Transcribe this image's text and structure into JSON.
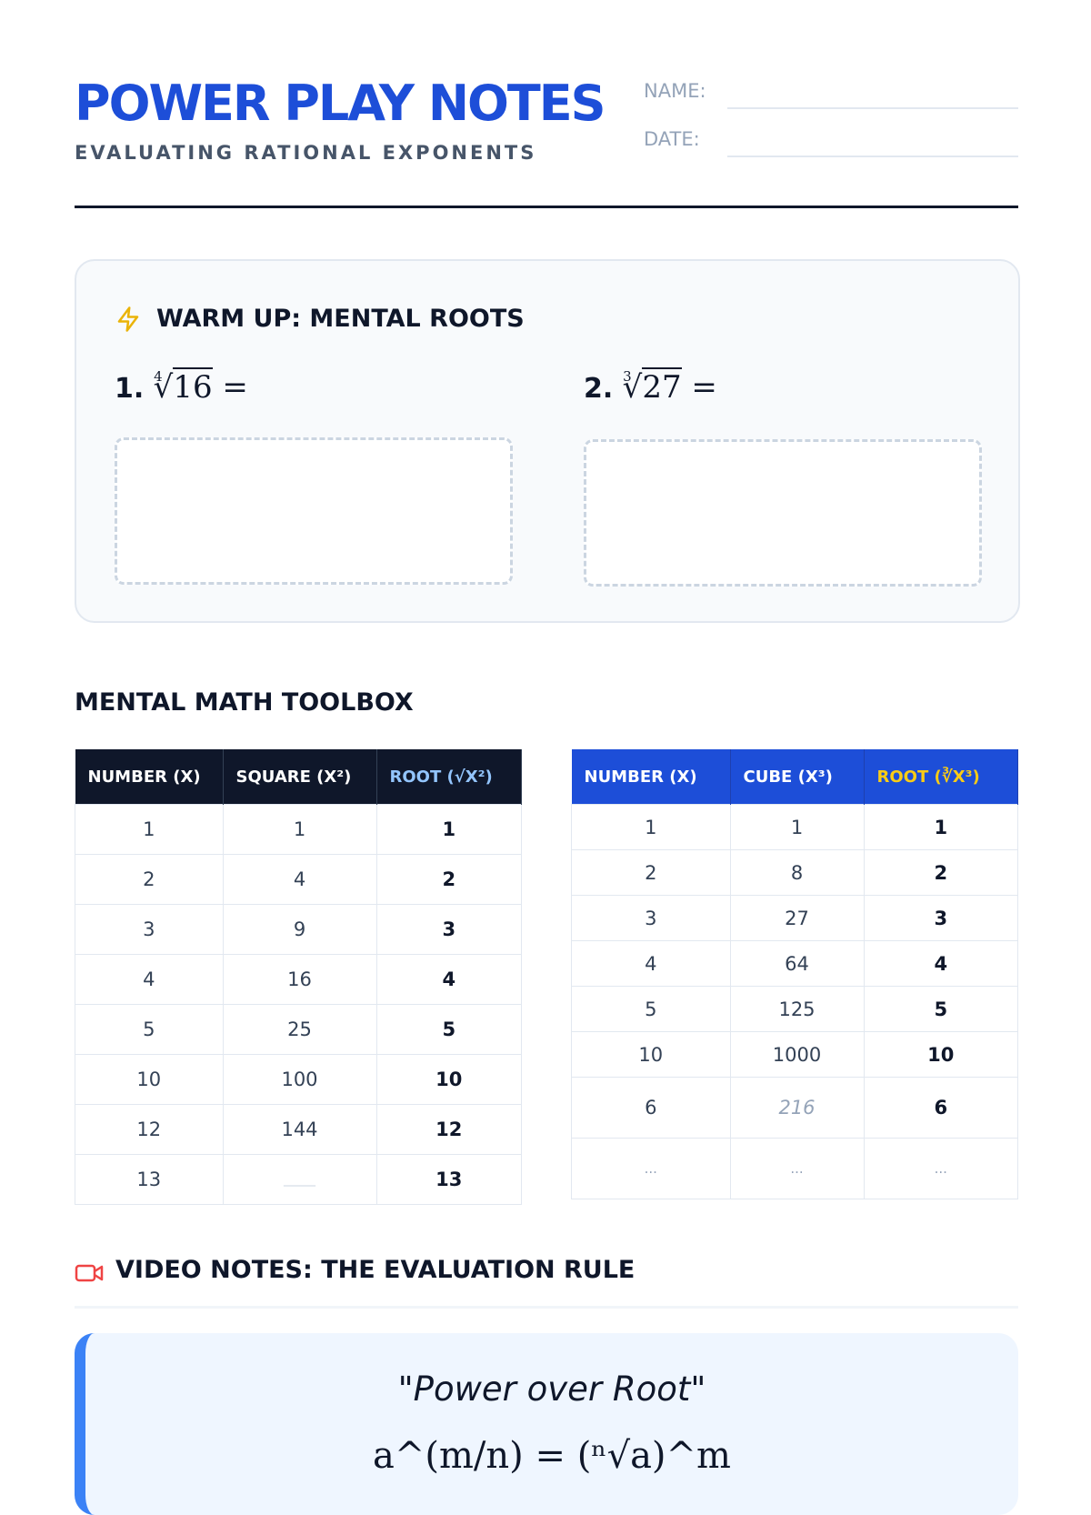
{
  "header": {
    "title": "POWER PLAY NOTES",
    "subtitle": "EVALUATING RATIONAL EXPONENTS",
    "name_label": "NAME:",
    "date_label": "DATE:"
  },
  "warmup": {
    "title": "WARM UP: MENTAL ROOTS",
    "icon": "lightning-bolt-icon",
    "accent": "#eab308",
    "problems": [
      {
        "num": "1.",
        "index": "4",
        "radicand": "16",
        "eq": "="
      },
      {
        "num": "2.",
        "index": "3",
        "radicand": "27",
        "eq": "="
      }
    ]
  },
  "toolbox": {
    "title": "MENTAL MATH TOOLBOX",
    "squares": {
      "headers": [
        "NUMBER (X)",
        "SQUARE (X²)",
        "ROOT (√X²)"
      ],
      "rows": [
        [
          "1",
          "1",
          "1"
        ],
        [
          "2",
          "4",
          "2"
        ],
        [
          "3",
          "9",
          "3"
        ],
        [
          "4",
          "16",
          "4"
        ],
        [
          "5",
          "25",
          "5"
        ],
        [
          "10",
          "100",
          "10"
        ],
        [
          "12",
          "144",
          "12"
        ],
        [
          "13",
          "_____",
          "13"
        ]
      ]
    },
    "cubes": {
      "headers": [
        "NUMBER (X)",
        "CUBE (X³)",
        "ROOT (∛X³)"
      ],
      "rows": [
        [
          "1",
          "1",
          "1"
        ],
        [
          "2",
          "8",
          "2"
        ],
        [
          "3",
          "27",
          "3"
        ],
        [
          "4",
          "64",
          "4"
        ],
        [
          "5",
          "125",
          "5"
        ],
        [
          "10",
          "1000",
          "10"
        ],
        [
          "6",
          "216",
          "6"
        ],
        [
          "...",
          "...",
          "..."
        ]
      ]
    }
  },
  "video": {
    "title": "VIDEO NOTES: THE EVALUATION RULE",
    "icon": "video-camera-icon",
    "quote": "\"Power over Root\"",
    "formula": "a^(m/n) = (ⁿ√a)^m"
  },
  "colors": {
    "blue": "#1d4ed8",
    "navy": "#0f172a",
    "root_header_dark": "#93c5fd",
    "root_header_blue": "#facc15",
    "accent_bar": "#3b82f6"
  }
}
